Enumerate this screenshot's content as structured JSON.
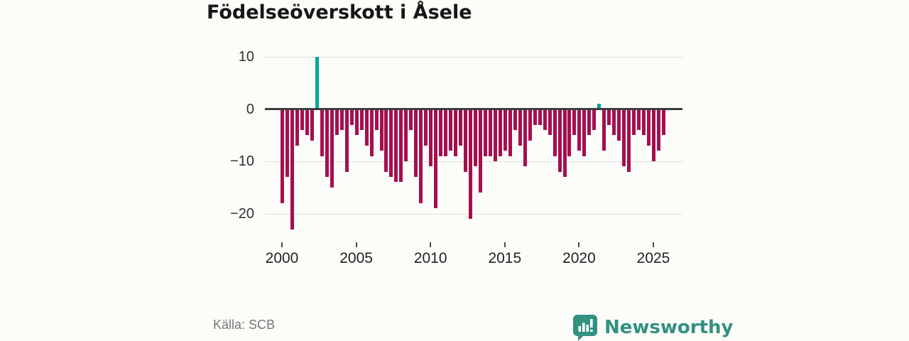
{
  "header": {
    "title": "Födelseöverskott i Åsele"
  },
  "footer": {
    "source": "Källa: SCB",
    "brand": "Newsworthy"
  },
  "chart_data": {
    "type": "bar",
    "title": "Födelseöverskott i Åsele",
    "xlabel": "",
    "ylabel": "",
    "ylim": [
      -24,
      12
    ],
    "grid": true,
    "legend": "none",
    "colors": {
      "negative": "#a60f4e",
      "positive": "#00a59a",
      "axis": "#3d3d3d",
      "gridline": "#e0e0dd"
    },
    "y_ticks": [
      {
        "label": "10",
        "value": 10
      },
      {
        "label": "0",
        "value": 0
      },
      {
        "label": "−10",
        "value": -10
      },
      {
        "label": "−20",
        "value": -20
      }
    ],
    "x_tick_labels": [
      "2000",
      "2005",
      "2010",
      "2015",
      "2020",
      "2025"
    ],
    "categories": [
      "2000 T1",
      "2000 T2",
      "2000 T3",
      "2001 T1",
      "2001 T2",
      "2001 T3",
      "2002 T1",
      "2002 T2",
      "2002 T3",
      "2003 T1",
      "2003 T2",
      "2003 T3",
      "2004 T1",
      "2004 T2",
      "2004 T3",
      "2005 T1",
      "2005 T2",
      "2005 T3",
      "2006 T1",
      "2006 T2",
      "2006 T3",
      "2007 T1",
      "2007 T2",
      "2007 T3",
      "2008 T1",
      "2008 T2",
      "2008 T3",
      "2009 T1",
      "2009 T2",
      "2009 T3",
      "2010 T1",
      "2010 T2",
      "2010 T3",
      "2011 T1",
      "2011 T2",
      "2011 T3",
      "2012 T1",
      "2012 T2",
      "2012 T3",
      "2013 T1",
      "2013 T2",
      "2013 T3",
      "2014 T1",
      "2014 T2",
      "2014 T3",
      "2015 T1",
      "2015 T2",
      "2015 T3",
      "2016 T1",
      "2016 T2",
      "2016 T3",
      "2017 T1",
      "2017 T2",
      "2017 T3",
      "2018 T1",
      "2018 T2",
      "2018 T3",
      "2019 T1",
      "2019 T2",
      "2019 T3",
      "2020 T1",
      "2020 T2",
      "2020 T3",
      "2021 T1",
      "2021 T2",
      "2021 T3",
      "2022 T1",
      "2022 T2",
      "2022 T3",
      "2023 T1",
      "2023 T2",
      "2023 T3",
      "2024 T1",
      "2024 T2",
      "2024 T3",
      "2025 T1",
      "2025 T2",
      "2025 T3"
    ],
    "values": [
      -18,
      -13,
      -23,
      -7,
      -4,
      -5,
      -6,
      10,
      -9,
      -13,
      -15,
      -5,
      -4,
      -12,
      -3,
      -5,
      -4,
      -7,
      -9,
      -4,
      -8,
      -12,
      -13,
      -14,
      -14,
      -10,
      -4,
      -13,
      -18,
      -7,
      -11,
      -19,
      -9,
      -9,
      -8,
      -9,
      -7,
      -12,
      -21,
      -11,
      -16,
      -9,
      -9,
      -10,
      -9,
      -8,
      -9,
      -4,
      -7,
      -11,
      -6,
      -3,
      -3,
      -4,
      -5,
      -9,
      -12,
      -13,
      -9,
      -5,
      -8,
      -9,
      -5,
      -4,
      1,
      -8,
      -3,
      -5,
      -6,
      -11,
      -12,
      -5,
      -4,
      -5,
      -7,
      -10,
      -8,
      -5
    ]
  }
}
